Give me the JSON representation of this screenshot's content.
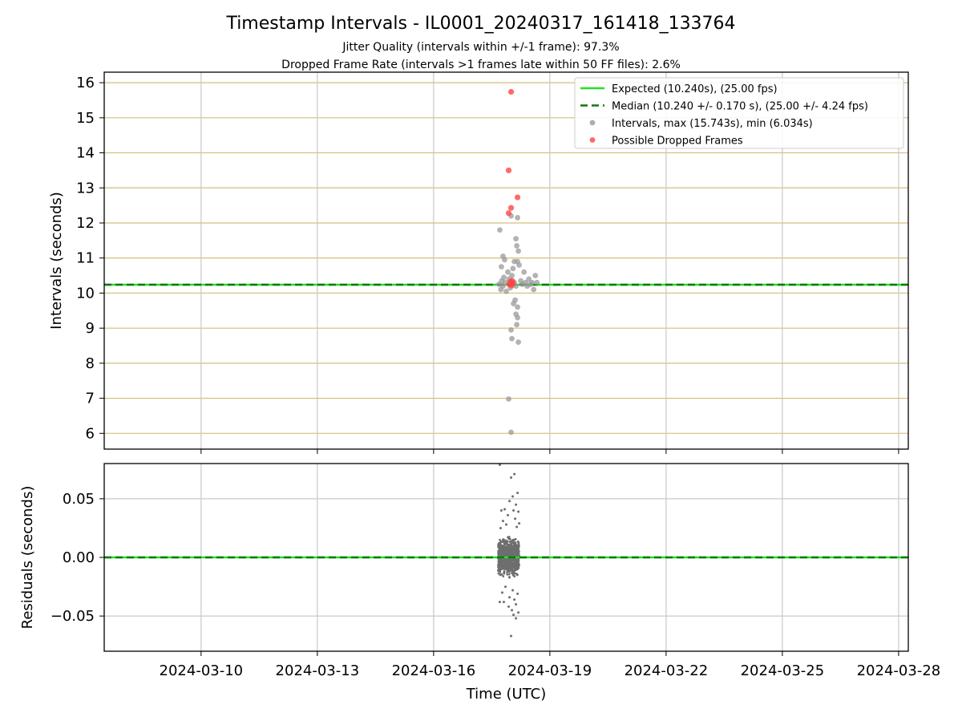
{
  "chart_data": [
    {
      "type": "scatter",
      "title": "Timestamp Intervals - IL0001_20240317_161418_133764",
      "subtitle_lines": [
        "Jitter Quality (intervals within +/-1 frame): 97.3%",
        "Dropped Frame Rate (intervals >1 frames late within 50 FF files): 2.6%"
      ],
      "ylabel": "Intervals (seconds)",
      "xlim": [
        "2024-03-07T12:00",
        "2024-03-28T06:00"
      ],
      "ylim": [
        5.55,
        16.3
      ],
      "yticks": [
        6,
        7,
        8,
        9,
        10,
        11,
        12,
        13,
        14,
        15,
        16
      ],
      "grid": true,
      "legend_position": "upper right",
      "legend": [
        {
          "label": "Expected (10.240s), (25.00 fps)",
          "kind": "line",
          "color": "#22e022"
        },
        {
          "label": "Median (10.240 +/- 0.170 s), (25.00 +/- 4.24 fps)",
          "kind": "dashed",
          "color": "#117711"
        },
        {
          "label": "Intervals, max (15.743s), min (6.034s)",
          "kind": "dot",
          "color": "#999999"
        },
        {
          "label": "Possible Dropped Frames",
          "kind": "dot",
          "color": "#ff4444"
        }
      ],
      "expected_value": 10.24,
      "median_value": 10.24,
      "series": [
        {
          "name": "Intervals, max (15.743s), min (6.034s)",
          "color": "#999999",
          "points": [
            [
              "2024-03-17T16:30",
              10.25
            ],
            [
              "2024-03-17T17:40",
              10.1
            ],
            [
              "2024-03-17T18:10",
              10.35
            ],
            [
              "2024-03-17T19:00",
              10.2
            ],
            [
              "2024-03-17T19:30",
              10.45
            ],
            [
              "2024-03-17T20:20",
              10.3
            ],
            [
              "2024-03-17T21:00",
              10.05
            ],
            [
              "2024-03-17T22:00",
              10.6
            ],
            [
              "2024-03-17T22:40",
              10.4
            ],
            [
              "2024-03-17T23:30",
              10.15
            ],
            [
              "2024-03-18T00:30",
              10.5
            ],
            [
              "2024-03-18T01:10",
              10.7
            ],
            [
              "2024-03-18T02:00",
              10.3
            ],
            [
              "2024-03-18T03:00",
              10.2
            ],
            [
              "2024-03-18T04:00",
              10.9
            ],
            [
              "2024-03-18T05:00",
              10.8
            ],
            [
              "2024-03-18T06:00",
              10.35
            ],
            [
              "2024-03-18T07:00",
              10.25
            ],
            [
              "2024-03-18T08:00",
              10.6
            ],
            [
              "2024-03-18T09:00",
              10.3
            ],
            [
              "2024-03-18T10:00",
              10.2
            ],
            [
              "2024-03-18T11:00",
              10.4
            ],
            [
              "2024-03-18T12:00",
              10.25
            ],
            [
              "2024-03-18T13:00",
              10.3
            ],
            [
              "2024-03-18T14:00",
              10.1
            ],
            [
              "2024-03-18T15:00",
              10.5
            ],
            [
              "2024-03-18T16:00",
              10.3
            ],
            [
              "2024-03-17T17:00",
              11.8
            ],
            [
              "2024-03-17T19:00",
              11.05
            ],
            [
              "2024-03-17T20:00",
              10.95
            ],
            [
              "2024-03-17T18:00",
              10.75
            ],
            [
              "2024-03-18T04:00",
              12.15
            ],
            [
              "2024-03-18T03:00",
              11.55
            ],
            [
              "2024-03-18T03:30",
              11.35
            ],
            [
              "2024-03-18T04:30",
              11.2
            ],
            [
              "2024-03-18T02:00",
              10.9
            ],
            [
              "2024-03-18T00:00",
              12.2
            ],
            [
              "2024-03-18T02:30",
              9.8
            ],
            [
              "2024-03-18T01:30",
              9.7
            ],
            [
              "2024-03-18T04:00",
              9.6
            ],
            [
              "2024-03-18T03:00",
              9.4
            ],
            [
              "2024-03-18T04:00",
              9.3
            ],
            [
              "2024-03-18T03:30",
              9.1
            ],
            [
              "2024-03-18T00:00",
              8.95
            ],
            [
              "2024-03-18T00:30",
              8.7
            ],
            [
              "2024-03-18T04:30",
              8.6
            ],
            [
              "2024-03-17T22:30",
              6.98
            ],
            [
              "2024-03-18T00:00",
              6.03
            ]
          ]
        },
        {
          "name": "Possible Dropped Frames",
          "color": "#ff4444",
          "points": [
            [
              "2024-03-18T00:00",
              15.74
            ],
            [
              "2024-03-17T22:30",
              13.5
            ],
            [
              "2024-03-18T04:00",
              12.73
            ],
            [
              "2024-03-18T00:00",
              12.43
            ],
            [
              "2024-03-17T22:30",
              12.28
            ],
            [
              "2024-03-17T23:30",
              10.32
            ],
            [
              "2024-03-18T00:20",
              10.22
            ],
            [
              "2024-03-18T01:00",
              10.28
            ],
            [
              "2024-03-17T22:50",
              10.25
            ],
            [
              "2024-03-18T00:40",
              10.35
            ]
          ]
        }
      ]
    },
    {
      "type": "scatter",
      "ylabel": "Residuals (seconds)",
      "xlabel": "Time (UTC)",
      "xlim": [
        "2024-03-07T12:00",
        "2024-03-28T06:00"
      ],
      "ylim": [
        -0.08,
        0.08
      ],
      "yticks": [
        0.05,
        0.0,
        -0.05
      ],
      "ytick_labels": [
        "0.05",
        "0.00",
        "−0.05"
      ],
      "xticks": [
        "2024-03-10",
        "2024-03-13",
        "2024-03-16",
        "2024-03-19",
        "2024-03-22",
        "2024-03-25",
        "2024-03-28"
      ],
      "grid": true,
      "zero_line": 0.0,
      "time_span": [
        "2024-03-17T16:00",
        "2024-03-18T05:00"
      ],
      "series": [
        {
          "name": "Residuals",
          "color": "#6e6e6e",
          "bulk_range": [
            -0.02,
            0.02
          ],
          "points": [
            [
              "2024-03-17T17:00",
              0.079
            ],
            [
              "2024-03-18T02:00",
              0.071
            ],
            [
              "2024-03-18T00:00",
              0.068
            ],
            [
              "2024-03-18T04:00",
              0.055
            ],
            [
              "2024-03-18T01:00",
              0.052
            ],
            [
              "2024-03-17T23:00",
              0.048
            ],
            [
              "2024-03-18T03:00",
              0.045
            ],
            [
              "2024-03-17T20:00",
              0.041
            ],
            [
              "2024-03-17T18:00",
              0.04
            ],
            [
              "2024-03-18T01:30",
              0.04
            ],
            [
              "2024-03-18T04:30",
              0.039
            ],
            [
              "2024-03-17T22:00",
              0.036
            ],
            [
              "2024-03-18T02:30",
              0.033
            ],
            [
              "2024-03-17T19:00",
              0.031
            ],
            [
              "2024-03-18T05:00",
              0.029
            ],
            [
              "2024-03-17T21:00",
              0.028
            ],
            [
              "2024-03-18T03:30",
              0.026
            ],
            [
              "2024-03-17T17:30",
              0.025
            ],
            [
              "2024-03-17T20:30",
              -0.025
            ],
            [
              "2024-03-18T01:00",
              -0.028
            ],
            [
              "2024-03-17T18:30",
              -0.03
            ],
            [
              "2024-03-18T04:00",
              -0.031
            ],
            [
              "2024-03-17T23:00",
              -0.034
            ],
            [
              "2024-03-18T02:00",
              -0.036
            ],
            [
              "2024-03-17T19:30",
              -0.038
            ],
            [
              "2024-03-18T03:00",
              -0.04
            ],
            [
              "2024-03-17T22:30",
              -0.042
            ],
            [
              "2024-03-18T00:30",
              -0.045
            ],
            [
              "2024-03-18T04:30",
              -0.047
            ],
            [
              "2024-03-17T17:00",
              -0.038
            ],
            [
              "2024-03-18T01:30",
              -0.049
            ],
            [
              "2024-03-18T03:00",
              -0.052
            ],
            [
              "2024-03-18T00:00",
              -0.067
            ]
          ]
        },
        {
          "name": "Median",
          "kind": "dashed",
          "color": "#117711",
          "value": 0.0
        }
      ]
    }
  ]
}
